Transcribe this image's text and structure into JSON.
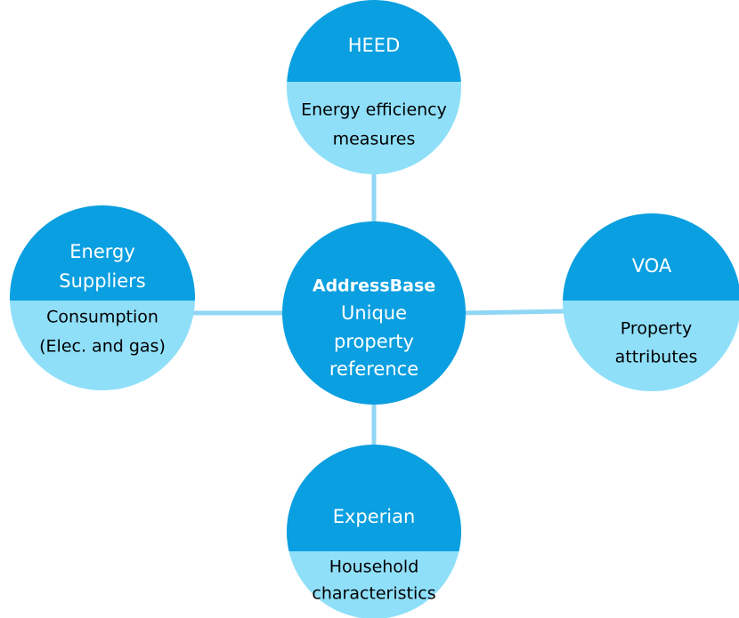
{
  "center": {
    "title": "AddressBase",
    "lines": [
      "Unique",
      "property",
      "reference"
    ]
  },
  "nodes": [
    {
      "title": [
        "HEED"
      ],
      "lines": [
        "Energy efficiency",
        "measures"
      ]
    },
    {
      "title": [
        "Energy",
        "Suppliers"
      ],
      "lines": [
        "Consumption",
        "(Elec. and gas)"
      ]
    },
    {
      "title": [
        "VOA"
      ],
      "lines": [
        "Property",
        "attributes"
      ]
    },
    {
      "title": [
        "Experian"
      ],
      "lines": [
        "Household",
        "characteristics"
      ]
    }
  ]
}
